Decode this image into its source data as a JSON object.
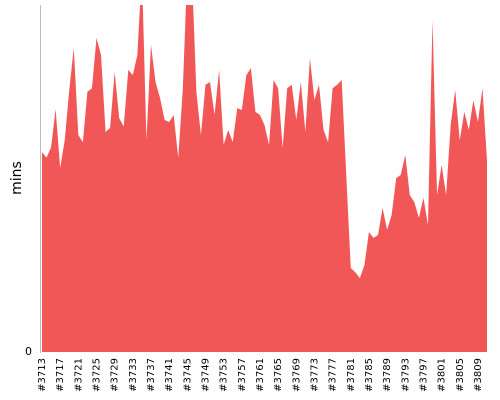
{
  "chart_data": {
    "type": "area",
    "y_label": "mins",
    "color": "#f25757",
    "categories": [
      "#3713",
      null,
      null,
      null,
      "#3717",
      null,
      null,
      null,
      "#3721",
      null,
      null,
      null,
      "#3725",
      null,
      null,
      null,
      "#3729",
      null,
      null,
      null,
      "#3733",
      null,
      null,
      null,
      "#3737",
      null,
      null,
      null,
      "#3741",
      null,
      null,
      null,
      "#3745",
      null,
      null,
      null,
      "#3749",
      null,
      null,
      null,
      "#3753",
      null,
      null,
      null,
      "#3757",
      null,
      null,
      null,
      "#3761",
      null,
      null,
      null,
      "#3765",
      null,
      null,
      null,
      "#3769",
      null,
      null,
      null,
      "#3773",
      null,
      null,
      null,
      "#3777",
      null,
      null,
      null,
      "#3781",
      null,
      null,
      null,
      "#3785",
      null,
      null,
      null,
      "#3789",
      null,
      null,
      null,
      "#3793",
      null,
      null,
      null,
      "#3797",
      null,
      null,
      null,
      "#3801",
      null,
      null,
      null,
      "#3805",
      null,
      null,
      null,
      "#3809",
      null,
      null
    ],
    "values": [
      57.6,
      56,
      59,
      70,
      53,
      61,
      75.5,
      87.6,
      62.5,
      60.5,
      75,
      76,
      90.5,
      85.6,
      63.4,
      64.6,
      80.7,
      67.4,
      65,
      81.3,
      79.8,
      85.6,
      110,
      61,
      88.5,
      77.8,
      73.2,
      66.9,
      66.3,
      68.3,
      56,
      75.5,
      110,
      110,
      75,
      62.5,
      77,
      77.8,
      68.3,
      81.3,
      59.7,
      64,
      60.5,
      70.3,
      69.7,
      79.8,
      81.8,
      69.2,
      68.3,
      65.4,
      59.7,
      78.4,
      76,
      58.8,
      76,
      77,
      66.9,
      77.8,
      63.4,
      84.7,
      72.6,
      77,
      64,
      60.5,
      76,
      77,
      78.4,
      51,
      24.2,
      23,
      21.3,
      25,
      34.6,
      32.9,
      33.7,
      41.5,
      35.2,
      39.5,
      50.1,
      51,
      56.8,
      45.2,
      43.2,
      38.6,
      44.4,
      36.6,
      95.7,
      45.2,
      53.9,
      45.2,
      65.4,
      75.5,
      61,
      69.2,
      64,
      72.6,
      66.3,
      76,
      55.3
    ],
    "ylim": [
      0,
      100
    ],
    "yticks": [
      0
    ]
  }
}
